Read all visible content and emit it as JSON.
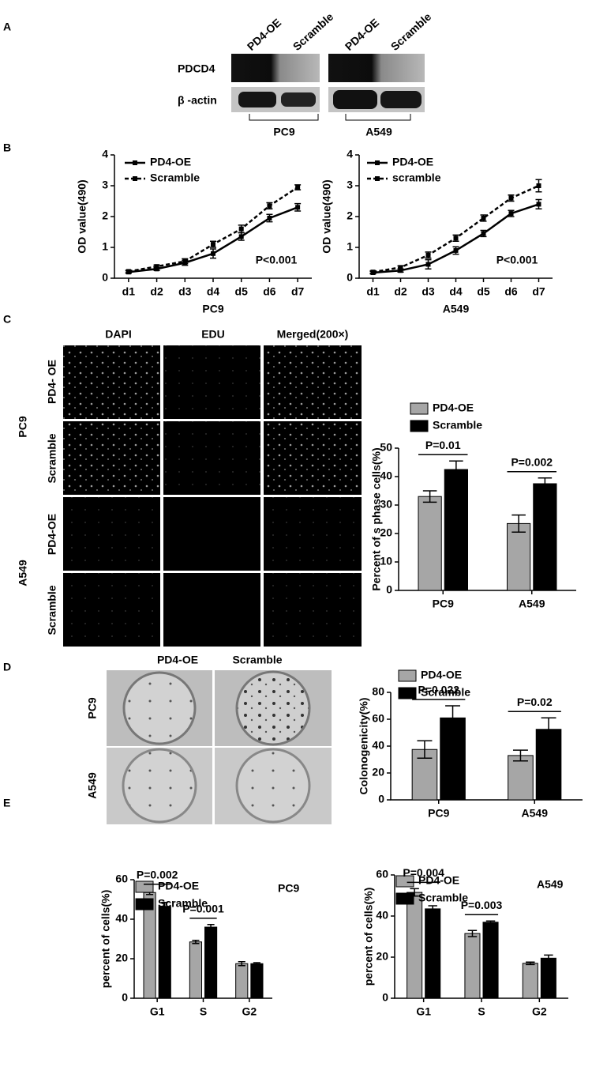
{
  "figure": {
    "panel_labels": [
      "A",
      "B",
      "C",
      "D",
      "E"
    ],
    "blot": {
      "column_headers": [
        "PD4-OE",
        "Scramble",
        "PD4-OE",
        "Scramble"
      ],
      "row_labels": [
        "PDCD4",
        "β -actin"
      ],
      "groups": [
        "PC9",
        "A549"
      ]
    },
    "edu": {
      "column_headers": [
        "DAPI",
        "EDU",
        "Merged(200×)"
      ],
      "row_labels": [
        "PD4- OE",
        "Scramble",
        "PD4-OE",
        "Scramble"
      ],
      "groups": [
        "PC9",
        "A549"
      ]
    },
    "colony": {
      "column_headers": [
        "PD4-OE",
        "Scramble"
      ],
      "row_labels": [
        "PC9",
        "A549"
      ]
    }
  },
  "chart_data": [
    {
      "type": "line",
      "y_label": "OD value(490)",
      "x_label": "PC9",
      "annotations": [
        "P<0.001"
      ],
      "categories": [
        "d1",
        "d2",
        "d3",
        "d4",
        "d5",
        "d6",
        "d7"
      ],
      "series": [
        {
          "name": "PD4-OE",
          "color": "#000000",
          "line_style": "solid",
          "values": [
            0.2,
            0.3,
            0.5,
            0.8,
            1.35,
            1.95,
            2.3
          ],
          "errors": [
            0.04,
            0.05,
            0.08,
            0.15,
            0.12,
            0.12,
            0.12
          ]
        },
        {
          "name": "Scramble",
          "color": "#000000",
          "line_style": "dashed",
          "values": [
            0.22,
            0.38,
            0.55,
            1.1,
            1.6,
            2.35,
            2.95
          ],
          "errors": [
            0.04,
            0.05,
            0.08,
            0.1,
            0.12,
            0.1,
            0.08
          ]
        }
      ],
      "ylim": [
        0,
        4
      ],
      "yticks": [
        0,
        1,
        2,
        3,
        4
      ]
    },
    {
      "type": "line",
      "y_label": "OD value(490)",
      "x_label": "A549",
      "annotations": [
        "P<0.001"
      ],
      "categories": [
        "d1",
        "d2",
        "d3",
        "d4",
        "d5",
        "d6",
        "d7"
      ],
      "series": [
        {
          "name": "PD4-OE",
          "color": "#000000",
          "line_style": "solid",
          "values": [
            0.18,
            0.25,
            0.45,
            0.9,
            1.45,
            2.1,
            2.4
          ],
          "errors": [
            0.04,
            0.05,
            0.15,
            0.12,
            0.1,
            0.1,
            0.15
          ]
        },
        {
          "name": "scramble",
          "color": "#000000",
          "line_style": "dashed",
          "values": [
            0.2,
            0.35,
            0.75,
            1.3,
            1.95,
            2.6,
            3.0
          ],
          "errors": [
            0.04,
            0.05,
            0.1,
            0.1,
            0.1,
            0.1,
            0.2
          ]
        }
      ],
      "ylim": [
        0,
        4
      ],
      "yticks": [
        0,
        1,
        2,
        3,
        4
      ]
    },
    {
      "type": "bar",
      "y_label": "Percent of s phase cells(%)",
      "annotations": [
        "P=0.01",
        "P=0.002"
      ],
      "categories": [
        "PC9",
        "A549"
      ],
      "series": [
        {
          "name": "PD4-OE",
          "color": "#a6a6a6",
          "values": [
            33,
            23.5
          ],
          "errors": [
            2,
            3
          ]
        },
        {
          "name": "Scramble",
          "color": "#000000",
          "values": [
            42.5,
            37.5
          ],
          "errors": [
            3,
            2
          ]
        }
      ],
      "ylim": [
        0,
        50
      ],
      "yticks": [
        0,
        10,
        20,
        30,
        40,
        50
      ]
    },
    {
      "type": "bar",
      "y_label": "Colonogenicity(%)",
      "annotations": [
        "P=0.022",
        "P=0.02"
      ],
      "categories": [
        "PC9",
        "A549"
      ],
      "series": [
        {
          "name": "PD4-OE",
          "color": "#a6a6a6",
          "values": [
            37.5,
            33
          ],
          "errors": [
            6.5,
            4
          ]
        },
        {
          "name": "Scramble",
          "color": "#000000",
          "values": [
            61,
            52.5
          ],
          "errors": [
            9,
            8.5
          ]
        }
      ],
      "ylim": [
        0,
        80
      ],
      "yticks": [
        0,
        20,
        40,
        60,
        80
      ]
    },
    {
      "type": "bar",
      "title": "PC9",
      "y_label": "percent of cells(%)",
      "annotations": [
        "P=0.002",
        "P=0.001"
      ],
      "categories": [
        "G1",
        "S",
        "G2"
      ],
      "series": [
        {
          "name": "PD4-OE",
          "color": "#a6a6a6",
          "values": [
            53.5,
            28.5,
            17.5
          ],
          "errors": [
            1,
            0.8,
            1
          ]
        },
        {
          "name": "Scramble",
          "color": "#000000",
          "values": [
            46.5,
            36,
            17.5
          ],
          "errors": [
            2,
            1.3,
            0.5
          ]
        }
      ],
      "ylim": [
        0,
        60
      ],
      "yticks": [
        0,
        20,
        40,
        60
      ]
    },
    {
      "type": "bar",
      "title": "A549",
      "y_label": "percent of cells(%)",
      "annotations": [
        "P=0.004",
        "P=0.003"
      ],
      "categories": [
        "G1",
        "S",
        "G2"
      ],
      "series": [
        {
          "name": "PD4-OE",
          "color": "#a6a6a6",
          "values": [
            51.5,
            31.5,
            17
          ],
          "errors": [
            1.8,
            1.5,
            0.6
          ]
        },
        {
          "name": "Scramble",
          "color": "#000000",
          "values": [
            43.5,
            37,
            19.5
          ],
          "errors": [
            1.5,
            0.6,
            1.5
          ]
        }
      ],
      "ylim": [
        0,
        60
      ],
      "yticks": [
        0,
        20,
        40,
        60
      ]
    }
  ]
}
